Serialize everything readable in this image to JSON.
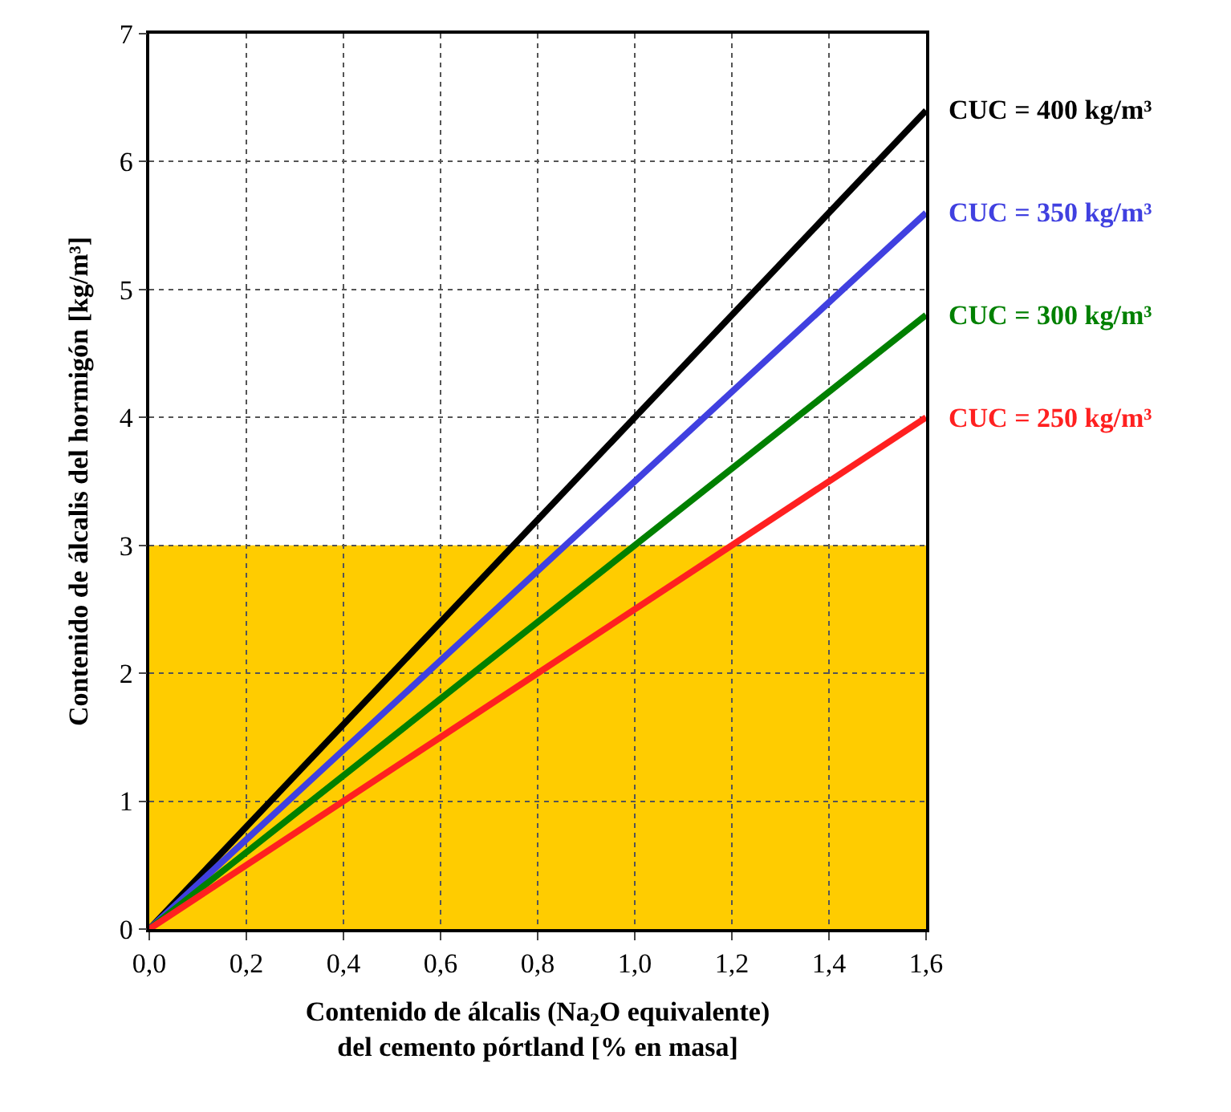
{
  "chart_data": {
    "type": "line",
    "xlabel": "Contenido de álcalis (Na$_{2}$O equivalente)\ndel cemento pórtland [% en masa]",
    "ylabel": "Contenido de álcalis del hormigón [kg/m³]",
    "x": [
      0,
      1.6
    ],
    "series": [
      {
        "name": "CUC = 400 kg/m³",
        "color": "#000000",
        "values": [
          0,
          6.4
        ]
      },
      {
        "name": "CUC = 350 kg/m³",
        "color": "#4040e0",
        "values": [
          0,
          5.6
        ]
      },
      {
        "name": "CUC = 300 kg/m³",
        "color": "#008000",
        "values": [
          0,
          4.8
        ]
      },
      {
        "name": "CUC = 250 kg/m³",
        "color": "#ff2020",
        "values": [
          0,
          4.0
        ]
      }
    ],
    "xlim": [
      0,
      1.6
    ],
    "xticks": [
      {
        "value": 0,
        "label": "0,0"
      },
      {
        "value": 0.2,
        "label": "0,2"
      },
      {
        "value": 0.4,
        "label": "0,4"
      },
      {
        "value": 0.6,
        "label": "0,6"
      },
      {
        "value": 0.8,
        "label": "0,8"
      },
      {
        "value": 1.0,
        "label": "1,0"
      },
      {
        "value": 1.2,
        "label": "1,2"
      },
      {
        "value": 1.4,
        "label": "1,4"
      },
      {
        "value": 1.6,
        "label": "1,6"
      }
    ],
    "ylim": [
      0,
      7
    ],
    "yticks": [
      0,
      1,
      2,
      3,
      4,
      5,
      6,
      7
    ],
    "bands": [
      {
        "axis": "y",
        "from": 0,
        "to": 3,
        "color": "#ffcc00"
      }
    ],
    "grid": true,
    "legend": false,
    "marker": "none",
    "line_style": "solid"
  }
}
